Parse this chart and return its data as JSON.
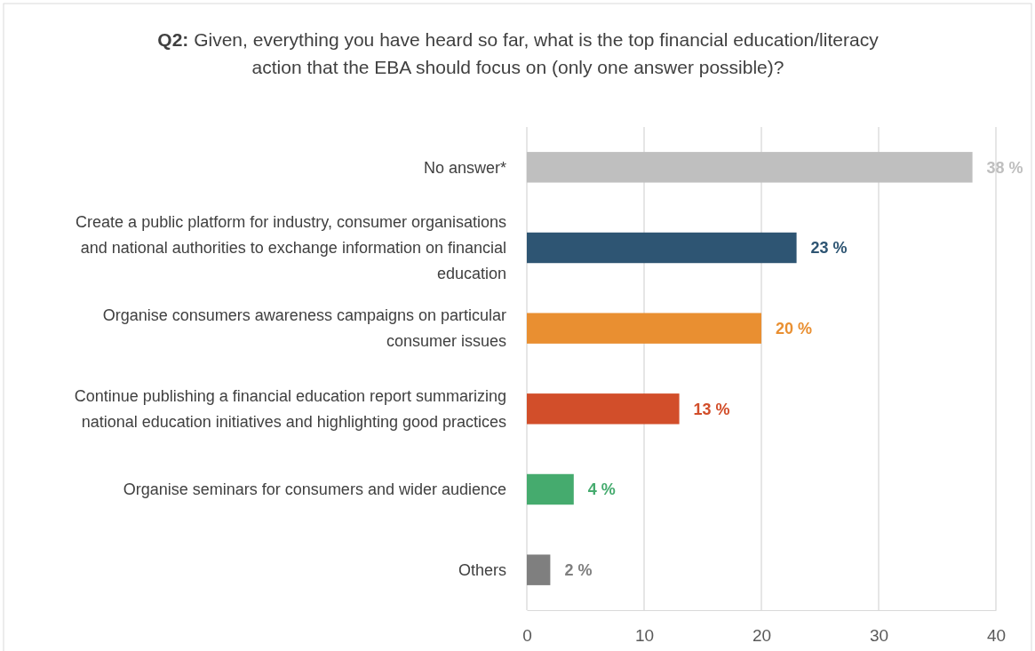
{
  "chart_data": {
    "type": "bar",
    "orientation": "horizontal",
    "title": "Q2: Given, everything you have heard so far, what is the top financial education/literacy action that the EBA should focus on (only one answer possible)?",
    "categories": [
      "No answer*",
      "Create a public platform for industry, consumer organisations and national authorities to exchange information on financial education",
      "Organise consumers awareness campaigns on particular consumer issues",
      "Continue publishing a financial education report summarizing national education initiatives and highlighting good practices",
      "Organise seminars for consumers and wider audience",
      "Others"
    ],
    "values": [
      38,
      23,
      20,
      13,
      4,
      2
    ],
    "colors": [
      "#bfbfbf",
      "#2e5573",
      "#e98f31",
      "#d24e2a",
      "#45ab6e",
      "#7f7f7f"
    ],
    "value_labels": [
      "38 %",
      "23 %",
      "20 %",
      "13 %",
      "4 %",
      "2 %"
    ],
    "xlim": [
      0,
      40
    ],
    "xticks": [
      0,
      10,
      20,
      30,
      40
    ],
    "grid": "x"
  }
}
